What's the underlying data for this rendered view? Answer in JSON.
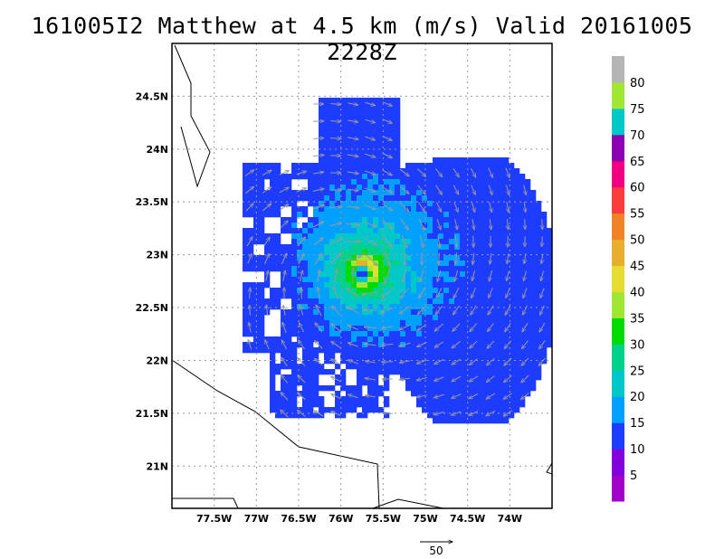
{
  "chart_data": {
    "type": "heatmap",
    "title": "161005I2 Matthew at 4.5 km (m/s) Valid 20161005 2228Z",
    "x_ticks": [
      "77.5W",
      "77W",
      "76.5W",
      "76W",
      "75.5W",
      "75W",
      "74.5W",
      "74W"
    ],
    "x_tick_values": [
      -77.5,
      -77.0,
      -76.5,
      -76.0,
      -75.5,
      -75.0,
      -74.5,
      -74.0
    ],
    "y_ticks": [
      "21N",
      "21.5N",
      "22N",
      "22.5N",
      "23N",
      "23.5N",
      "24N",
      "24.5N"
    ],
    "y_tick_values": [
      21.0,
      21.5,
      22.0,
      22.5,
      23.0,
      23.5,
      24.0,
      24.5
    ],
    "xlim": [
      -78.0,
      -73.5
    ],
    "ylim": [
      20.6,
      25.0
    ],
    "grid": true,
    "colorbar": {
      "labels": [
        "5",
        "10",
        "15",
        "20",
        "25",
        "30",
        "35",
        "40",
        "45",
        "50",
        "55",
        "60",
        "65",
        "70",
        "75",
        "80"
      ],
      "colors": [
        "#a000c8",
        "#8200dc",
        "#1e3cff",
        "#00a0ff",
        "#00c8c8",
        "#00d28c",
        "#00dc00",
        "#a0e632",
        "#e6dc32",
        "#e6af2d",
        "#f08228",
        "#fa3c3c",
        "#f00082",
        "#8c00b4",
        "#00c8c8",
        "#a0e632",
        "#b4b4b4"
      ]
    },
    "vector_scale_label": "50",
    "storm_center": {
      "lon": -75.75,
      "lat": 22.82
    },
    "storm_fields": {
      "eye_radius_deg": 0.13,
      "max_wind_ms": 42
    }
  }
}
